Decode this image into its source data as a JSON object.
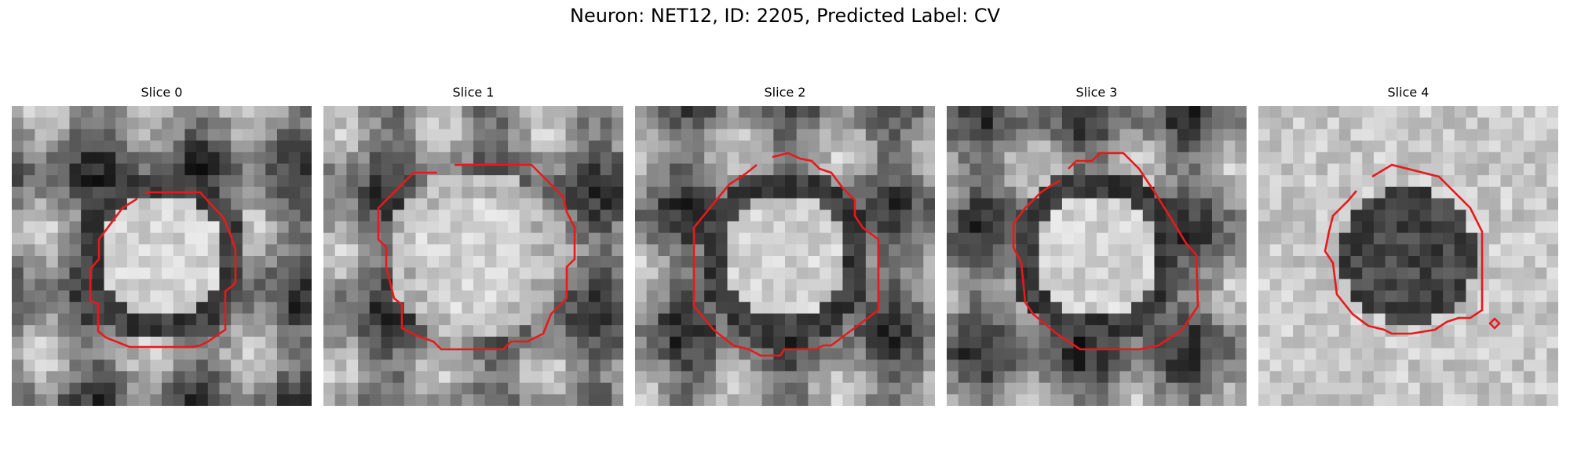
{
  "figure": {
    "title": "Neuron: NET12, ID: 2205, Predicted Label: CV",
    "contour_color": "#e8191b",
    "colormap": "grayscale",
    "panels": [
      {
        "title": "Slice 0",
        "blob": "bright",
        "dark_ring": true
      },
      {
        "title": "Slice 1",
        "blob": "mottled-bright",
        "dark_ring": false
      },
      {
        "title": "Slice 2",
        "blob": "bright",
        "dark_ring": true
      },
      {
        "title": "Slice 3",
        "blob": "bright",
        "dark_ring": true
      },
      {
        "title": "Slice 4",
        "blob": "dark",
        "dark_ring": false,
        "extra_marker": true
      }
    ]
  }
}
